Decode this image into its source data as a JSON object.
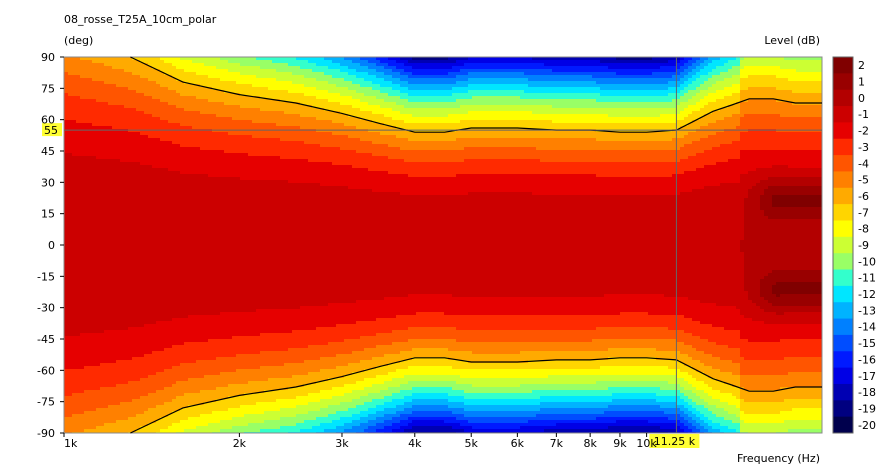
{
  "chart_data": {
    "type": "heatmap",
    "title": "08_rosse_T25A_10cm_polar",
    "ylabel": "(deg)",
    "xlabel": "Frequency  (Hz)",
    "colorbar_label": "Level  (dB)",
    "x_scale": "log",
    "xlim_hz": [
      1000,
      20000
    ],
    "ylim_deg": [
      -90,
      90
    ],
    "x_ticks": [
      {
        "v": 1000,
        "label": "1k"
      },
      {
        "v": 2000,
        "label": "2k"
      },
      {
        "v": 3000,
        "label": "3k"
      },
      {
        "v": 4000,
        "label": "4k"
      },
      {
        "v": 5000,
        "label": "5k"
      },
      {
        "v": 6000,
        "label": "6k"
      },
      {
        "v": 7000,
        "label": "7k"
      },
      {
        "v": 8000,
        "label": "8k"
      },
      {
        "v": 9000,
        "label": "9k"
      },
      {
        "v": 10000,
        "label": "10k"
      }
    ],
    "y_ticks": [
      90,
      75,
      60,
      45,
      30,
      15,
      0,
      -15,
      -30,
      -45,
      -60,
      -75,
      -90
    ],
    "colorbar": [
      {
        "label": "2",
        "color": "#800000"
      },
      {
        "label": "1",
        "color": "#990000"
      },
      {
        "label": "0",
        "color": "#b30000"
      },
      {
        "label": "-1",
        "color": "#cc0000"
      },
      {
        "label": "-2",
        "color": "#e60000"
      },
      {
        "label": "-3",
        "color": "#ff2a00"
      },
      {
        "label": "-4",
        "color": "#ff5500"
      },
      {
        "label": "-5",
        "color": "#ff8000"
      },
      {
        "label": "-6",
        "color": "#ffaa00"
      },
      {
        "label": "-7",
        "color": "#ffd500"
      },
      {
        "label": "-8",
        "color": "#ffff00"
      },
      {
        "label": "-9",
        "color": "#ccff33"
      },
      {
        "label": "-10",
        "color": "#99ff66"
      },
      {
        "label": "-11",
        "color": "#33ffcc"
      },
      {
        "label": "-12",
        "color": "#00e6ff"
      },
      {
        "label": "-13",
        "color": "#00b3ff"
      },
      {
        "label": "-14",
        "color": "#0080ff"
      },
      {
        "label": "-15",
        "color": "#004dff"
      },
      {
        "label": "-16",
        "color": "#001aff"
      },
      {
        "label": "-17",
        "color": "#0000e6"
      },
      {
        "label": "-18",
        "color": "#0000b3"
      },
      {
        "label": "-19",
        "color": "#000080"
      },
      {
        "label": "-20",
        "color": "#00004d"
      }
    ],
    "contour_minus6dB": {
      "freq_hz": [
        1300,
        1600,
        2000,
        2500,
        3000,
        3500,
        4000,
        4500,
        5000,
        5500,
        6000,
        7000,
        8000,
        9000,
        10000,
        11250,
        12000,
        13000,
        14000,
        15000,
        16500,
        18000,
        20000
      ],
      "angle_deg": [
        90,
        78,
        72,
        68,
        63,
        58,
        54,
        54,
        56,
        56,
        56,
        55,
        55,
        54,
        54,
        55,
        59,
        64,
        67,
        70,
        70,
        68,
        68
      ]
    },
    "cursor": {
      "x_label": "11.25 k",
      "x_hz": 11250,
      "y_label": "55",
      "y_deg": 55
    }
  }
}
